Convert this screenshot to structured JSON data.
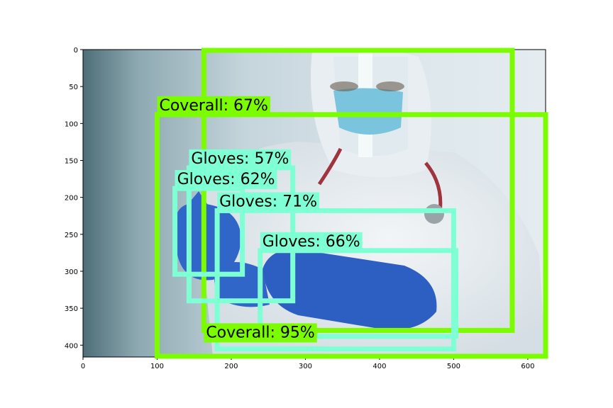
{
  "chart_data": {
    "type": "image-detections",
    "title": "",
    "xlabel": "",
    "ylabel": "",
    "xlim": [
      0,
      624
    ],
    "ylim": [
      416,
      0
    ],
    "x_ticks": [
      0,
      100,
      200,
      300,
      400,
      500,
      600
    ],
    "y_ticks": [
      0,
      50,
      100,
      150,
      200,
      250,
      300,
      350,
      400
    ],
    "x_tick_labels": [
      "0",
      "100",
      "200",
      "300",
      "400",
      "500",
      "600"
    ],
    "y_tick_labels": [
      "0",
      "50",
      "100",
      "150",
      "200",
      "250",
      "300",
      "350",
      "400"
    ],
    "grid": false,
    "colors": {
      "coverall": "#7CFC00",
      "gloves": "#7FFFD4"
    },
    "detections": [
      {
        "class": "Coverall",
        "label": "Coverall: 95%",
        "score": 95,
        "x0": 163,
        "y0": 1,
        "x1": 579,
        "y1": 380
      },
      {
        "class": "Coverall",
        "label": "Coverall: 67%",
        "score": 67,
        "x0": 100,
        "y0": 88,
        "x1": 624,
        "y1": 415
      },
      {
        "class": "Gloves",
        "label": "Gloves: 57%",
        "score": 57,
        "x0": 143,
        "y0": 160,
        "x1": 283,
        "y1": 340
      },
      {
        "class": "Gloves",
        "label": "Gloves: 62%",
        "score": 62,
        "x0": 124,
        "y0": 188,
        "x1": 215,
        "y1": 304
      },
      {
        "class": "Gloves",
        "label": "Gloves: 71%",
        "score": 71,
        "x0": 181,
        "y0": 218,
        "x1": 500,
        "y1": 405
      },
      {
        "class": "Gloves",
        "label": "Gloves: 66%",
        "score": 66,
        "x0": 239,
        "y0": 272,
        "x1": 503,
        "y1": 388
      }
    ]
  }
}
